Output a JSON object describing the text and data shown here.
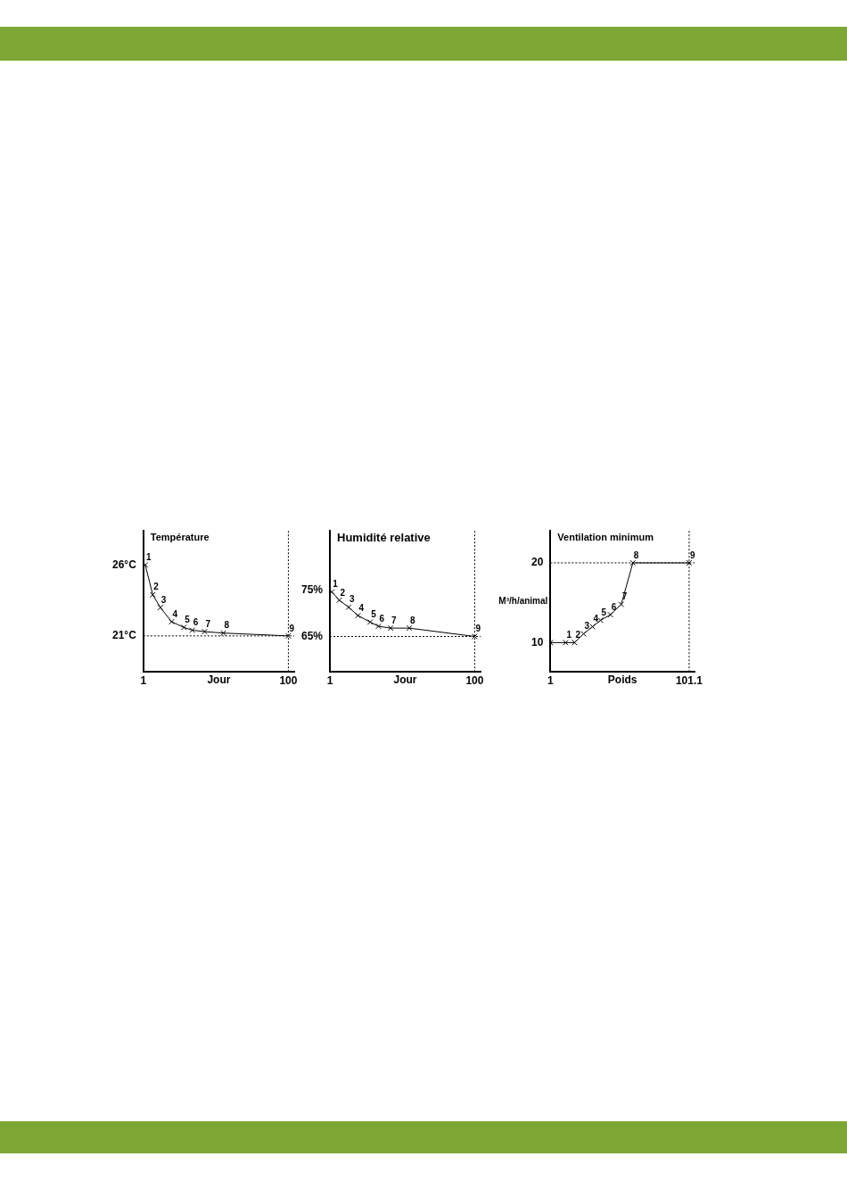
{
  "chart_data": [
    {
      "type": "line",
      "title": "Température",
      "xlabel": "Jour",
      "x": [
        2.3,
        7.4,
        12.6,
        20.3,
        28.6,
        34.4,
        42.8,
        55.6,
        100
      ],
      "series": [
        {
          "color": "#000000",
          "values": [
            26,
            23.9,
            23,
            22,
            21.6,
            21.4,
            21.3,
            21.2,
            21
          ]
        }
      ],
      "annotations": [
        {
          "text": "1",
          "x": 2.3,
          "y": 26
        },
        {
          "text": "2",
          "x": 7.4,
          "y": 23.9
        },
        {
          "text": "3",
          "x": 12.6,
          "y": 23
        },
        {
          "text": "4",
          "x": 20.3,
          "y": 22
        },
        {
          "text": "5",
          "x": 28.6,
          "y": 21.6
        },
        {
          "text": "6",
          "x": 34.4,
          "y": 21.4
        },
        {
          "text": "7",
          "x": 42.8,
          "y": 21.3
        },
        {
          "text": "8",
          "x": 55.6,
          "y": 21.2
        },
        {
          "text": "9",
          "x": 100,
          "y": 21
        }
      ],
      "xlim": [
        1,
        104
      ],
      "xticks": [
        1,
        100
      ],
      "ylim": [
        18.5,
        28.4
      ],
      "yticks": [
        {
          "value": 26,
          "label": "26°C"
        },
        {
          "value": 21,
          "label": "21°C"
        }
      ],
      "ref_lines": [
        {
          "axis": "y",
          "value": 21,
          "line_style": "dotted",
          "color": "#000000"
        },
        {
          "axis": "x",
          "value": 100,
          "line_style": "dotted",
          "color": "#000000"
        }
      ],
      "grid": false,
      "legend": false,
      "marker": "cross",
      "line_style": "solid"
    },
    {
      "type": "line",
      "title": "Humidité relative",
      "xlabel": "Jour",
      "x": [
        2.3,
        7.4,
        13.8,
        20.2,
        28.5,
        34.2,
        42.5,
        55.3,
        100
      ],
      "series": [
        {
          "color": "#000000",
          "values": [
            74.6,
            72.8,
            71.3,
            69.5,
            68.1,
            67.2,
            66.8,
            66.8,
            65
          ]
        }
      ],
      "annotations": [
        {
          "text": "1",
          "x": 2.3,
          "y": 74.6
        },
        {
          "text": "2",
          "x": 7.4,
          "y": 72.8
        },
        {
          "text": "3",
          "x": 13.8,
          "y": 71.3
        },
        {
          "text": "4",
          "x": 20.2,
          "y": 69.5
        },
        {
          "text": "5",
          "x": 28.5,
          "y": 68.1
        },
        {
          "text": "6",
          "x": 34.2,
          "y": 67.2
        },
        {
          "text": "7",
          "x": 42.5,
          "y": 66.8
        },
        {
          "text": "8",
          "x": 55.3,
          "y": 66.8
        },
        {
          "text": "9",
          "x": 100,
          "y": 65
        }
      ],
      "xlim": [
        1,
        104
      ],
      "xticks": [
        1,
        100
      ],
      "ylim": [
        57.5,
        87.7
      ],
      "yticks": [
        {
          "value": 75,
          "label": "75%"
        },
        {
          "value": 65,
          "label": "65%"
        }
      ],
      "ref_lines": [
        {
          "axis": "y",
          "value": 65,
          "line_style": "dotted",
          "color": "#000000"
        },
        {
          "axis": "x",
          "value": 100,
          "line_style": "dotted",
          "color": "#000000"
        }
      ],
      "grid": false,
      "legend": false,
      "marker": "cross",
      "line_style": "solid"
    },
    {
      "type": "line",
      "title": "Ventilation minimum",
      "xlabel": "Poids",
      "ylabel": "M³/h/animal",
      "x": [
        1,
        12,
        18.4,
        24.9,
        31.4,
        37.2,
        44.3,
        52.1,
        60.5,
        101.1
      ],
      "series": [
        {
          "color": "#000000",
          "values": [
            10,
            10,
            10,
            11.1,
            12,
            12.8,
            13.5,
            14.8,
            20,
            20
          ]
        }
      ],
      "annotations": [
        {
          "text": "1",
          "x": 12,
          "y": 10
        },
        {
          "text": "2",
          "x": 18.4,
          "y": 10
        },
        {
          "text": "3",
          "x": 24.9,
          "y": 11.1
        },
        {
          "text": "4",
          "x": 31.4,
          "y": 12
        },
        {
          "text": "5",
          "x": 37.2,
          "y": 12.8
        },
        {
          "text": "6",
          "x": 44.3,
          "y": 13.5
        },
        {
          "text": "7",
          "x": 52.1,
          "y": 14.8
        },
        {
          "text": "8",
          "x": 60.5,
          "y": 20
        },
        {
          "text": "9",
          "x": 101.1,
          "y": 20
        }
      ],
      "xlim": [
        1,
        105
      ],
      "xticks": [
        1,
        101.1
      ],
      "ylim": [
        6.4,
        24
      ],
      "yticks": [
        20,
        10
      ],
      "ref_lines": [
        {
          "axis": "y",
          "value": 20,
          "line_style": "dotted",
          "color": "#000000"
        },
        {
          "axis": "x",
          "value": 101.1,
          "line_style": "dotted",
          "color": "#000000"
        }
      ],
      "grid": false,
      "legend": false,
      "marker": "cross",
      "line_style": "solid"
    }
  ]
}
